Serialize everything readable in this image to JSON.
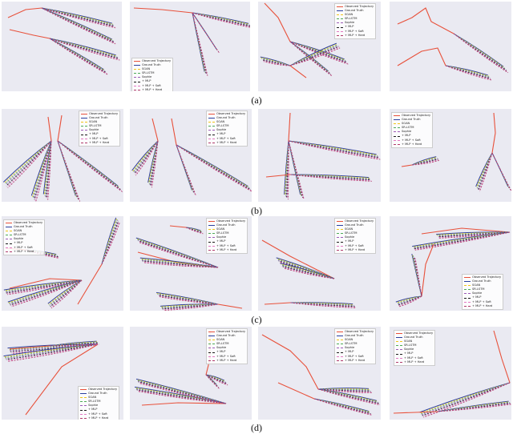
{
  "figure": {
    "captions": [
      "(a)",
      "(b)",
      "(c)",
      "(d)"
    ],
    "legend_entries": [
      {
        "label": "Observed Trajectory",
        "color": "#e8513b",
        "style": "solid"
      },
      {
        "label": "Ground Truth",
        "color": "#2b3f9e",
        "style": "solid"
      },
      {
        "label": "SGAN",
        "color": "#f0c419",
        "style": "dashed"
      },
      {
        "label": "SR-LSTM",
        "color": "#4daa57",
        "style": "dashed"
      },
      {
        "label": "Sophie",
        "color": "#9b59b6",
        "style": "dashed"
      },
      {
        "label": "+ MLP",
        "color": "#1a1a1a",
        "style": "dashed"
      },
      {
        "label": "+ MLP + Soft",
        "color": "#e377c2",
        "style": "dashed"
      },
      {
        "label": "+ MLP + Hard",
        "color": "#b03a6b",
        "style": "dashed"
      }
    ]
  }
}
